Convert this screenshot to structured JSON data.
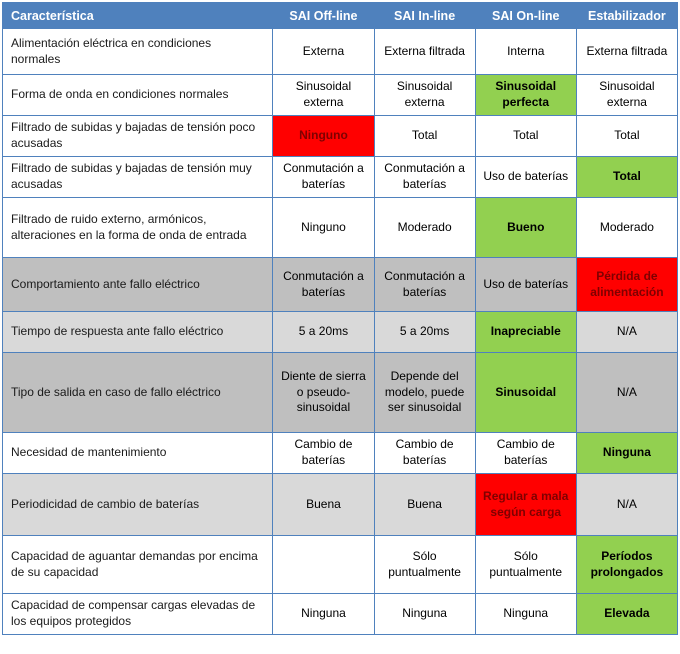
{
  "palette": {
    "header_bg": "#4F81BD",
    "header_text": "#FFFFFF",
    "border": "#4F81BD",
    "good_bg": "#92D050",
    "good_text": "#000000",
    "bad_bg": "#FF0000",
    "bad_text": "#7F0000",
    "shade_dark": "#BFBFBF",
    "shade_light": "#D9D9D9",
    "label_text": "#1A1A1A",
    "value_text": "#000000"
  },
  "chart_data": {
    "type": "table",
    "columns": [
      "Característica",
      "SAI Off-line",
      "SAI In-line",
      "SAI On-line",
      "Estabilizador"
    ],
    "rows": [
      {
        "label": "Alimentación eléctrica en condiciones normales",
        "shade": "none",
        "cells": [
          {
            "text": "Externa",
            "status": "none"
          },
          {
            "text": "Externa filtrada",
            "status": "none"
          },
          {
            "text": "Interna",
            "status": "none"
          },
          {
            "text": "Externa filtrada",
            "status": "none"
          }
        ]
      },
      {
        "label": "Forma de onda en condiciones normales",
        "shade": "none",
        "cells": [
          {
            "text": "Sinusoidal externa",
            "status": "none"
          },
          {
            "text": "Sinusoidal externa",
            "status": "none"
          },
          {
            "text": "Sinusoidal perfecta",
            "status": "good"
          },
          {
            "text": "Sinusoidal externa",
            "status": "none"
          }
        ]
      },
      {
        "label": "Filtrado de subidas y bajadas de tensión poco acusadas",
        "shade": "none",
        "cells": [
          {
            "text": "Ninguno",
            "status": "bad"
          },
          {
            "text": "Total",
            "status": "none"
          },
          {
            "text": "Total",
            "status": "none"
          },
          {
            "text": "Total",
            "status": "none"
          }
        ]
      },
      {
        "label": "Filtrado de subidas y bajadas de tensión muy acusadas",
        "shade": "none",
        "cells": [
          {
            "text": "Conmutación a baterías",
            "status": "none"
          },
          {
            "text": "Conmutación a baterías",
            "status": "none"
          },
          {
            "text": "Uso de baterías",
            "status": "none"
          },
          {
            "text": "Total",
            "status": "good"
          }
        ]
      },
      {
        "label": "Filtrado de ruido externo, armónicos, alteraciones en la forma de onda de entrada",
        "shade": "none",
        "cells": [
          {
            "text": "Ninguno",
            "status": "none"
          },
          {
            "text": "Moderado",
            "status": "none"
          },
          {
            "text": "Bueno",
            "status": "good"
          },
          {
            "text": "Moderado",
            "status": "none"
          }
        ]
      },
      {
        "label": "Comportamiento ante fallo eléctrico",
        "shade": "dark",
        "cells": [
          {
            "text": "Conmutación a baterías",
            "status": "none"
          },
          {
            "text": "Conmutación a baterías",
            "status": "none"
          },
          {
            "text": "Uso de baterías",
            "status": "none"
          },
          {
            "text": "Pérdida de alimentación",
            "status": "bad"
          }
        ]
      },
      {
        "label": "Tiempo de respuesta ante fallo eléctrico",
        "shade": "light",
        "cells": [
          {
            "text": "5 a 20ms",
            "status": "none"
          },
          {
            "text": "5 a 20ms",
            "status": "none"
          },
          {
            "text": "Inapreciable",
            "status": "good"
          },
          {
            "text": "N/A",
            "status": "none"
          }
        ]
      },
      {
        "label": "Tipo de salida en caso de fallo eléctrico",
        "shade": "dark",
        "cells": [
          {
            "text": "Diente de sierra o pseudo-sinusoidal",
            "status": "none"
          },
          {
            "text": "Depende del modelo, puede ser sinusoidal",
            "status": "none"
          },
          {
            "text": "Sinusoidal",
            "status": "good"
          },
          {
            "text": "N/A",
            "status": "none"
          }
        ]
      },
      {
        "label": "Necesidad de mantenimiento",
        "shade": "none",
        "cells": [
          {
            "text": "Cambio de baterías",
            "status": "none"
          },
          {
            "text": "Cambio de baterías",
            "status": "none"
          },
          {
            "text": "Cambio de baterías",
            "status": "none"
          },
          {
            "text": "Ninguna",
            "status": "good"
          }
        ]
      },
      {
        "label": "Periodicidad de cambio de baterías",
        "shade": "light",
        "cells": [
          {
            "text": "Buena",
            "status": "none"
          },
          {
            "text": "Buena",
            "status": "none"
          },
          {
            "text": "Regular a mala según carga",
            "status": "bad"
          },
          {
            "text": "N/A",
            "status": "none"
          }
        ]
      },
      {
        "label": "Capacidad de aguantar demandas por encima de su capacidad",
        "shade": "none",
        "cells": [
          {
            "text": "",
            "status": "none"
          },
          {
            "text": "Sólo puntualmente",
            "status": "none"
          },
          {
            "text": "Sólo puntualmente",
            "status": "none"
          },
          {
            "text": "Períodos prolongados",
            "status": "good"
          }
        ]
      },
      {
        "label": "Capacidad de compensar cargas elevadas de los equipos protegidos",
        "shade": "none",
        "cells": [
          {
            "text": "Ninguna",
            "status": "none"
          },
          {
            "text": "Ninguna",
            "status": "none"
          },
          {
            "text": "Ninguna",
            "status": "none"
          },
          {
            "text": "Elevada",
            "status": "good"
          }
        ]
      }
    ]
  }
}
